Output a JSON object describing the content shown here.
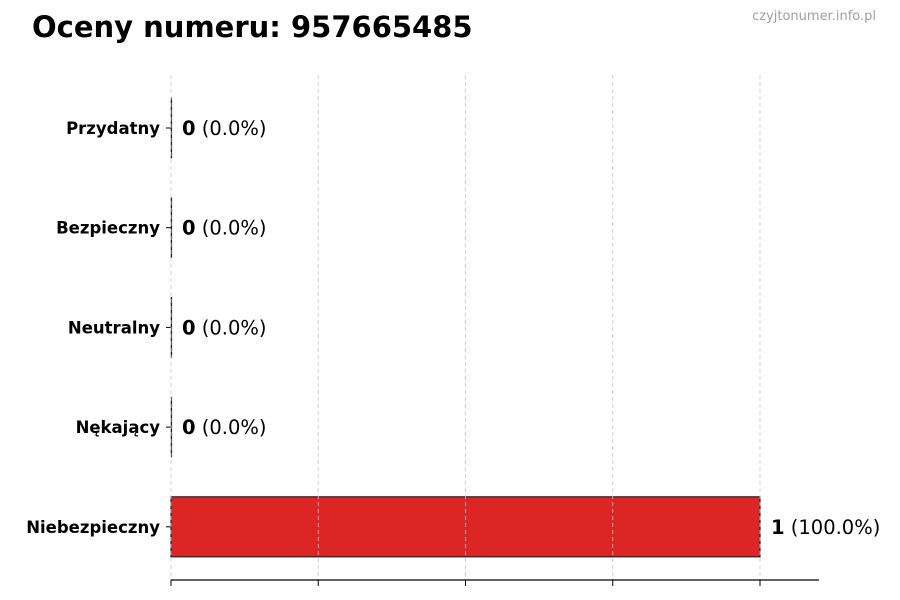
{
  "title": "Oceny numeru: 957665485",
  "watermark": "czyjtonumer.info.pl",
  "chart_data": {
    "type": "bar",
    "orientation": "horizontal",
    "categories": [
      "Przydatny",
      "Bezpieczny",
      "Neutralny",
      "Nękający",
      "Niebezpieczny"
    ],
    "values": [
      0,
      0,
      0,
      0,
      1
    ],
    "percent_labels": [
      "(0.0%)",
      "(0.0%)",
      "(0.0%)",
      "(0.0%)",
      "(100.0%)"
    ],
    "colors": [
      "#4caf50",
      "#2e7d32",
      "#9e9e9e",
      "#f57c00",
      "#dc2626"
    ],
    "xlim": [
      0,
      1.1
    ],
    "xticks": [
      0,
      0.25,
      0.5,
      0.75,
      1
    ],
    "xtick_labels_shown": false,
    "grid": "x-dashed",
    "xlabel": "",
    "ylabel": ""
  }
}
